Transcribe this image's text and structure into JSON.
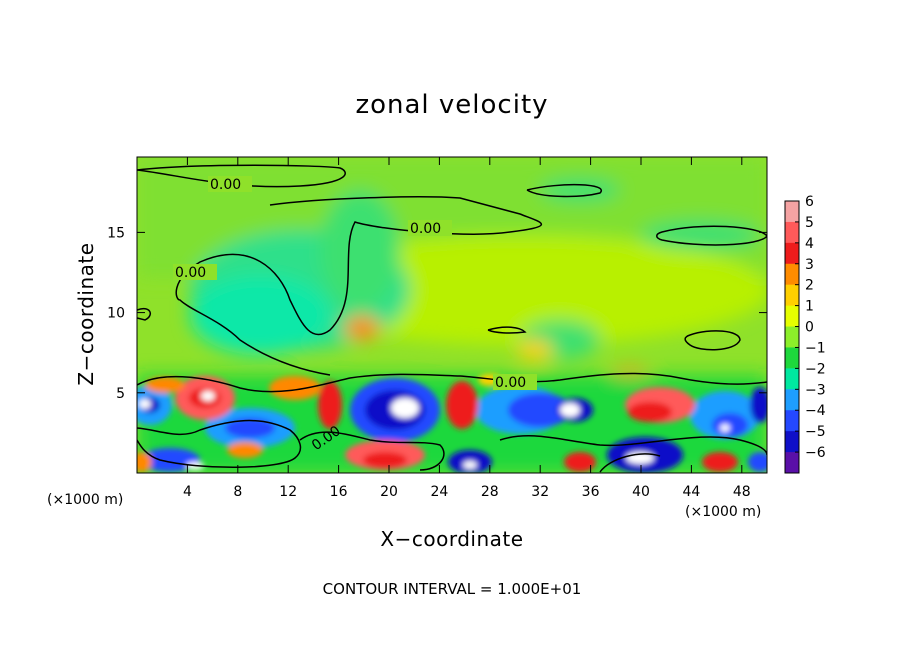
{
  "chart_data": {
    "type": "heatmap",
    "title": "zonal velocity",
    "xlabel": "X−coordinate",
    "ylabel": "Z−coordinate",
    "x_unit_left": "(×1000 m)",
    "x_unit_right": "(×1000 m)",
    "x_ticks": [
      4,
      8,
      12,
      16,
      20,
      24,
      28,
      32,
      36,
      40,
      44,
      48
    ],
    "y_ticks": [
      5,
      10,
      15
    ],
    "xlim": [
      0,
      50
    ],
    "ylim": [
      0,
      19.7
    ],
    "colorbar": {
      "ticks": [
        6,
        5,
        4,
        3,
        2,
        1,
        0,
        -1,
        -2,
        -3,
        -4,
        -5,
        -6
      ],
      "colors": [
        "#f5a3a3",
        "#ff5a5a",
        "#ee1c1c",
        "#ff8c00",
        "#ffd000",
        "#e6ff00",
        "#8cef2a",
        "#1ed83c",
        "#00e8a0",
        "#1e9eff",
        "#2448ff",
        "#1010c8",
        "#5a10a8"
      ]
    },
    "contour_label": "0.00",
    "contour_interval_text": "CONTOUR INTERVAL = 1.000E+01",
    "field_summary": {
      "upper_region_z_above_6": "weak values, mostly between -1 and 1",
      "lower_region_z_below_6": "alternating strong cells, from about -6 to 6"
    }
  }
}
